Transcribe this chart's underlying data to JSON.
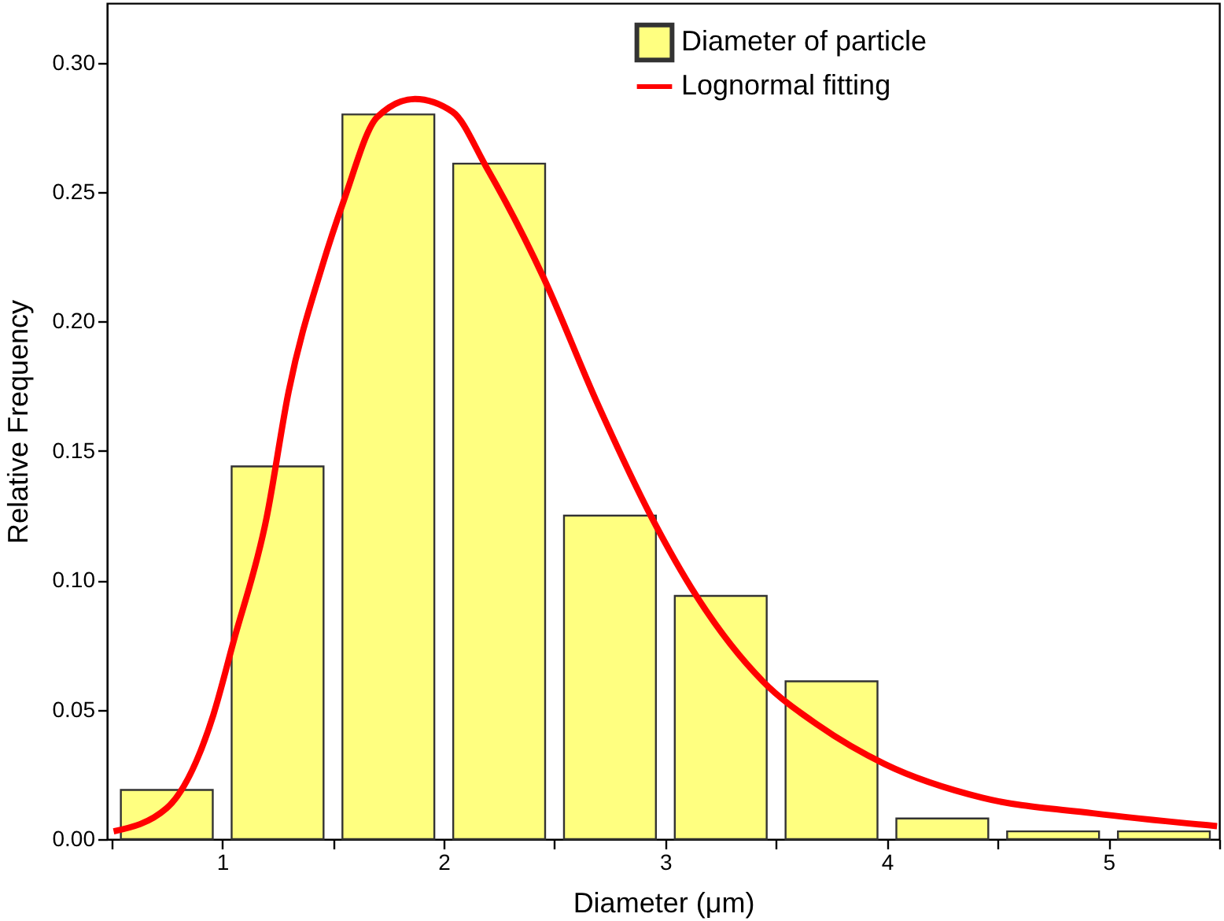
{
  "chart_data": {
    "type": "histogram",
    "xlabel": "Diameter (μm)",
    "ylabel": "Relative Frequency",
    "bins": [
      0.5,
      1.0,
      1.5,
      2.0,
      2.5,
      3.0,
      3.5,
      4.0,
      4.5,
      5.0,
      5.5
    ],
    "series": [
      {
        "name": "Diameter of particle",
        "color": "#ffff80",
        "values": [
          0.019,
          0.144,
          0.28,
          0.261,
          0.125,
          0.094,
          0.061,
          0.008,
          0.003,
          0.003
        ]
      },
      {
        "name": "Lognormal fitting",
        "type": "line",
        "color": "#ff0000",
        "x": [
          0.51,
          0.75,
          0.96,
          1.05,
          1.2,
          1.3,
          1.45,
          1.55,
          1.7,
          1.87,
          2.04,
          2.19,
          2.45,
          2.69,
          2.94,
          3.14,
          3.44,
          3.69,
          3.99,
          4.43,
          4.93,
          5.49
        ],
        "values": [
          0.003,
          0.012,
          0.048,
          0.076,
          0.124,
          0.173,
          0.221,
          0.247,
          0.279,
          0.286,
          0.281,
          0.26,
          0.217,
          0.169,
          0.124,
          0.094,
          0.061,
          0.044,
          0.029,
          0.016,
          0.01,
          0.005
        ]
      }
    ],
    "xlim": [
      0.48,
      5.5
    ],
    "xticks": [
      {
        "value": 0.5,
        "label": null
      },
      1,
      {
        "value": 1.5,
        "label": null
      },
      2,
      {
        "value": 2.5,
        "label": null
      },
      3,
      {
        "value": 3.5,
        "label": null
      },
      4,
      {
        "value": 4.5,
        "label": null
      },
      5,
      {
        "value": 5.5,
        "label": null
      }
    ],
    "ylim": [
      0,
      0.323
    ],
    "yticks": [
      {
        "value": 0,
        "label": "0.00"
      },
      {
        "value": 0.05,
        "label": "0.05"
      },
      {
        "value": 0.1,
        "label": "0.10"
      },
      {
        "value": 0.15,
        "label": "0.15"
      },
      {
        "value": 0.2,
        "label": "0.20"
      },
      {
        "value": 0.25,
        "label": "0.25"
      },
      {
        "value": 0.3,
        "label": "0.30"
      }
    ],
    "legend": "top right",
    "grid": false
  }
}
